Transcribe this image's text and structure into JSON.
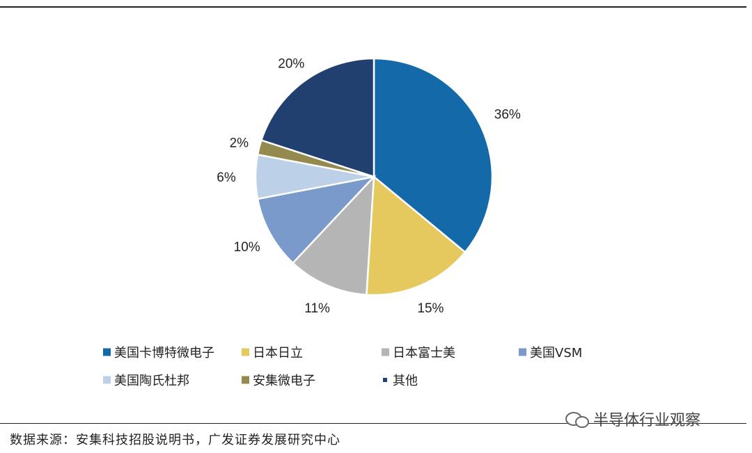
{
  "chart_data": {
    "type": "pie",
    "title": "",
    "slices": [
      {
        "label": "美国卡博特微电子",
        "value": 36,
        "display": "36%",
        "color": "#1469A8"
      },
      {
        "label": "日本日立",
        "value": 15,
        "display": "15%",
        "color": "#E6C95E"
      },
      {
        "label": "日本富士美",
        "value": 11,
        "display": "11%",
        "color": "#B5B5B5"
      },
      {
        "label": "美国VSM",
        "value": 10,
        "display": "10%",
        "color": "#7A9ACB"
      },
      {
        "label": "美国陶氏杜邦",
        "value": 6,
        "display": "6%",
        "color": "#BCD0E8"
      },
      {
        "label": "安集微电子",
        "value": 2,
        "display": "2%",
        "color": "#948A4E"
      },
      {
        "label": "其他",
        "value": 20,
        "display": "20%",
        "color": "#21406F"
      }
    ],
    "legend_position": "bottom"
  },
  "source_text": "数据来源：安集科技招股说明书，广发证券发展研究中心",
  "watermark_text": "半导体行业观察"
}
